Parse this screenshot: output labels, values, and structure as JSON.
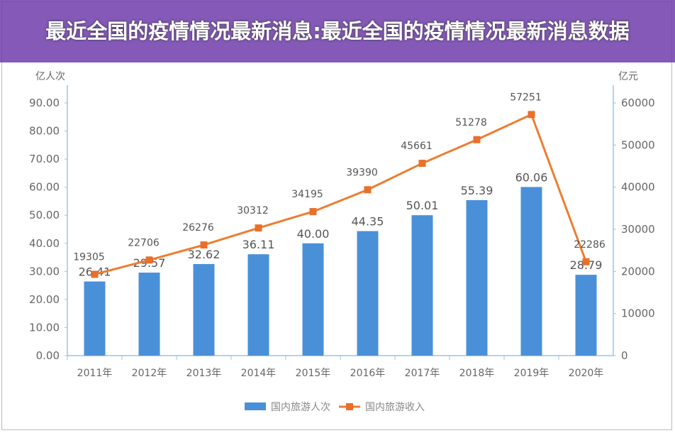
{
  "chart_data": {
    "type": "bar+line",
    "categories": [
      "2011年",
      "2012年",
      "2013年",
      "2014年",
      "2015年",
      "2016年",
      "2017年",
      "2018年",
      "2019年",
      "2020年"
    ],
    "series": [
      {
        "name": "国内旅游人次",
        "type": "bar",
        "axis": "left",
        "values": [
          26.41,
          29.57,
          32.62,
          36.11,
          40.0,
          44.35,
          50.01,
          55.39,
          60.06,
          28.79
        ],
        "labels": [
          "26.41",
          "29.57",
          "32.62",
          "36.11",
          "40.00",
          "44.35",
          "50.01",
          "55.39",
          "60.06",
          "28.79"
        ]
      },
      {
        "name": "国内旅游收入",
        "type": "line",
        "axis": "right",
        "values": [
          19305,
          22706,
          26276,
          30312,
          34195,
          39390,
          45661,
          51278,
          57251,
          22286
        ],
        "labels": [
          "19305",
          "22706",
          "26276",
          "30312",
          "34195",
          "39390",
          "45661",
          "51278",
          "57251",
          "22286"
        ]
      }
    ],
    "ylabel_left": "亿人次",
    "ylabel_right": "亿元",
    "ylim_left": [
      0,
      90
    ],
    "ylim_right": [
      0,
      60000
    ],
    "yticks_left": [
      "0.00",
      "10.00",
      "20.00",
      "30.00",
      "40.00",
      "50.00",
      "60.00",
      "70.00",
      "80.00",
      "90.00"
    ],
    "yticks_right": [
      "0",
      "10000",
      "20000",
      "30000",
      "40000",
      "50000",
      "60000"
    ],
    "legend_position": "bottom",
    "colors": {
      "bar": "#4a90d9",
      "line": "#ed7d31",
      "line_marker": "#e8702a"
    }
  },
  "banner": {
    "title": "最近全国的疫情情况最新消息:最近全国的疫情情况最新消息数据"
  }
}
